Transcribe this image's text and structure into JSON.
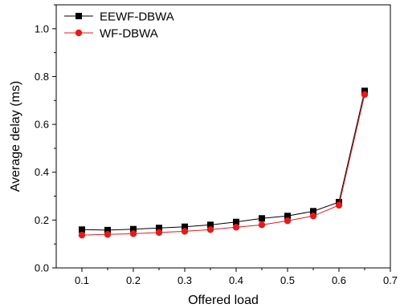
{
  "chart_data": {
    "type": "line",
    "title": "",
    "xlabel": "Offered load",
    "ylabel": "Average delay (ms)",
    "xlim": [
      0.05,
      0.7
    ],
    "ylim": [
      0.0,
      1.1
    ],
    "x_ticks": [
      "0.1",
      "0.2",
      "0.3",
      "0.4",
      "0.5",
      "0.6",
      "0.7"
    ],
    "y_ticks": [
      "0.0",
      "0.2",
      "0.4",
      "0.6",
      "0.8",
      "1.0"
    ],
    "x": [
      0.1,
      0.15,
      0.2,
      0.25,
      0.3,
      0.35,
      0.4,
      0.45,
      0.5,
      0.55,
      0.6,
      0.65
    ],
    "series": [
      {
        "name": "EEWF-DBWA",
        "color": "#000000",
        "marker": "square",
        "values": [
          0.16,
          0.158,
          0.162,
          0.167,
          0.172,
          0.18,
          0.192,
          0.207,
          0.217,
          0.237,
          0.275,
          0.74
        ]
      },
      {
        "name": "WF-DBWA",
        "color": "#e8191b",
        "marker": "circle",
        "values": [
          0.137,
          0.14,
          0.143,
          0.148,
          0.153,
          0.16,
          0.17,
          0.18,
          0.197,
          0.217,
          0.262,
          0.725
        ]
      }
    ],
    "legend_position": "top-left",
    "grid": false
  }
}
